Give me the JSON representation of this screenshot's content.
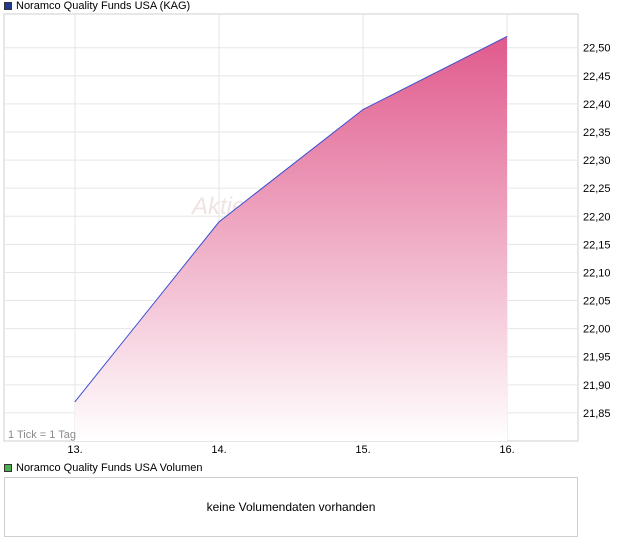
{
  "legend": {
    "price_label": "Noramco Quality Funds USA (KAG)",
    "price_color": "#1f3a93",
    "volume_label": "Noramco Quality Funds USA Volumen",
    "volume_color": "#4caf50"
  },
  "watermark": "Aktien",
  "tick_note": "1 Tick = 1 Tag",
  "volume_message": "keine Volumendaten vorhanden",
  "chart_data": {
    "type": "area",
    "x": [
      "13.",
      "14.",
      "15.",
      "16."
    ],
    "series": [
      {
        "values": [
          21.87,
          22.19,
          22.39,
          22.52
        ]
      }
    ],
    "yticks": [
      "21,85",
      "21,90",
      "21,95",
      "22,00",
      "22,05",
      "22,10",
      "22,15",
      "22,20",
      "22,25",
      "22,30",
      "22,35",
      "22,40",
      "22,45",
      "22,50"
    ],
    "ylim": [
      21.8,
      22.56
    ],
    "line_color": "#3b4fd1",
    "fill_top_color": "#e05a8c",
    "fill_bottom_color": "#ffffff",
    "grid": true,
    "y_axis_side": "right"
  }
}
